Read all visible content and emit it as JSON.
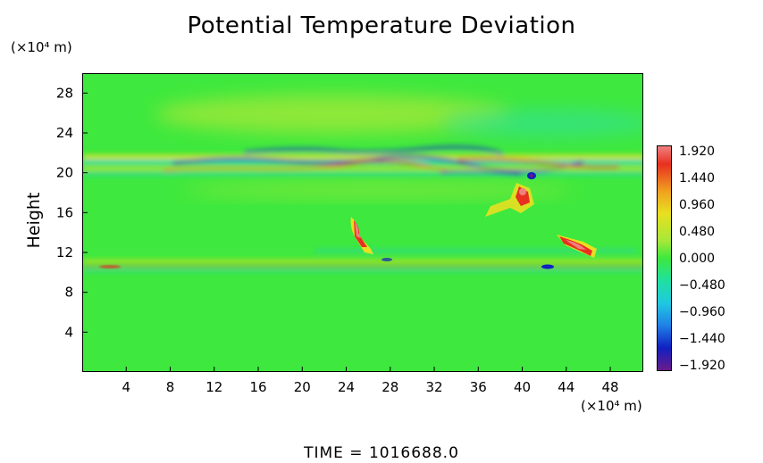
{
  "chart_data": {
    "type": "heatmap",
    "title": "Potential Temperature Deviation",
    "ylabel": "Height",
    "yunit": "(×10⁴ m)",
    "xunit": "(×10⁴ m)",
    "xticks": [
      "4",
      "8",
      "12",
      "16",
      "20",
      "24",
      "28",
      "32",
      "36",
      "40",
      "44",
      "48"
    ],
    "yticks": [
      "4",
      "8",
      "12",
      "16",
      "20",
      "24",
      "28"
    ],
    "xlim": [
      0,
      51
    ],
    "ylim": [
      0,
      30
    ],
    "colorbar": {
      "labels": [
        "1.920",
        "1.440",
        "0.960",
        "0.480",
        "0.000",
        "−0.480",
        "−0.960",
        "−1.440",
        "−1.920"
      ],
      "range": [
        -1.92,
        1.92
      ]
    },
    "footer": "TIME  =  1016688.0",
    "colors": {
      "background_field": "#3ee83e",
      "positive_high": "#f08080",
      "positive_mid": "#e83020",
      "positive_low": "#e8e820",
      "negative_low": "#20d0c8",
      "negative_mid": "#2020c8",
      "negative_high": "#6a1a8a"
    }
  }
}
